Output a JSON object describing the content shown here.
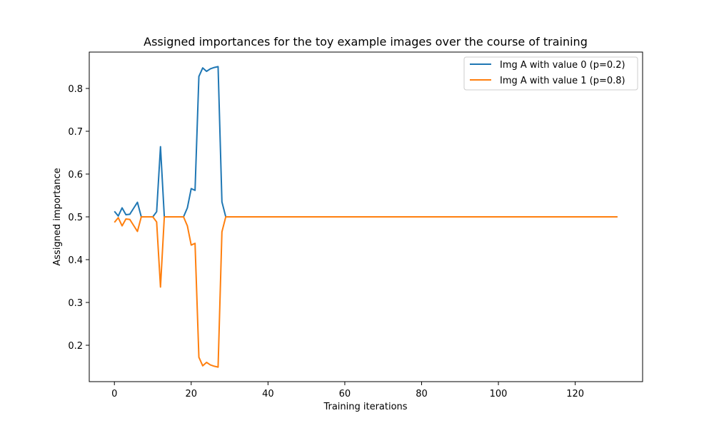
{
  "chart_data": {
    "type": "line",
    "title": "Assigned importances for the toy example images over the course of training",
    "xlabel": "Training iterations",
    "ylabel": "Assigned importance",
    "xlim": [
      -6.55,
      137.55
    ],
    "ylim": [
      0.115,
      0.885
    ],
    "xticks": [
      0,
      20,
      40,
      60,
      80,
      100,
      120
    ],
    "yticks": [
      0.2,
      0.3,
      0.4,
      0.5,
      0.6,
      0.7,
      0.8
    ],
    "ytick_labels": [
      "0.2",
      "0.3",
      "0.4",
      "0.5",
      "0.6",
      "0.7",
      "0.8"
    ],
    "grid": false,
    "legend_position": "top-right",
    "x": [
      0,
      1,
      2,
      3,
      4,
      5,
      6,
      7,
      8,
      9,
      10,
      11,
      12,
      13,
      14,
      15,
      16,
      17,
      18,
      19,
      20,
      21,
      22,
      23,
      24,
      25,
      26,
      27,
      28,
      29,
      30,
      131
    ],
    "series": [
      {
        "name": "Img A with value 0 (p=0.2)",
        "color": "#1f77b4",
        "values": [
          0.513,
          0.502,
          0.521,
          0.505,
          0.506,
          0.52,
          0.534,
          0.5,
          0.5,
          0.5,
          0.5,
          0.512,
          0.664,
          0.5,
          0.5,
          0.5,
          0.5,
          0.5,
          0.5,
          0.521,
          0.566,
          0.562,
          0.828,
          0.848,
          0.84,
          0.846,
          0.849,
          0.851,
          0.535,
          0.5,
          0.5,
          0.5
        ]
      },
      {
        "name": "Img A with value 1 (p=0.8)",
        "color": "#ff7f0e",
        "values": [
          0.487,
          0.498,
          0.479,
          0.495,
          0.494,
          0.48,
          0.466,
          0.5,
          0.5,
          0.5,
          0.5,
          0.488,
          0.336,
          0.5,
          0.5,
          0.5,
          0.5,
          0.5,
          0.5,
          0.479,
          0.434,
          0.438,
          0.172,
          0.152,
          0.16,
          0.154,
          0.151,
          0.149,
          0.465,
          0.5,
          0.5,
          0.5
        ]
      }
    ]
  }
}
